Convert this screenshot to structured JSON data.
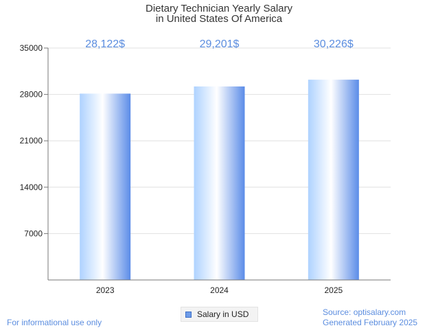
{
  "chart_data": {
    "type": "bar",
    "title": [
      "Dietary Technician Yearly Salary",
      "in United States Of America"
    ],
    "categories": [
      "2023",
      "2024",
      "2025"
    ],
    "series": [
      {
        "name": "Salary in USD",
        "values": [
          28122,
          29201,
          30226
        ]
      }
    ],
    "data_labels": [
      "28,122$",
      "29,201$",
      "30,226$"
    ],
    "y_ticks": [
      7000,
      14000,
      21000,
      28000,
      35000
    ],
    "ylim": [
      0,
      35000
    ],
    "grid": true,
    "legend": "bottom-center",
    "colors": {
      "bar_light": "#ffffff",
      "bar_mid": "#aed2ff",
      "bar_dark": "#5b8ce8",
      "label": "#5b8ddf",
      "grid": "#e0e0e0"
    }
  },
  "footer": {
    "left_note": "For informational use only",
    "source": "Source: optisalary.com",
    "generated": "Generated February 2025"
  }
}
